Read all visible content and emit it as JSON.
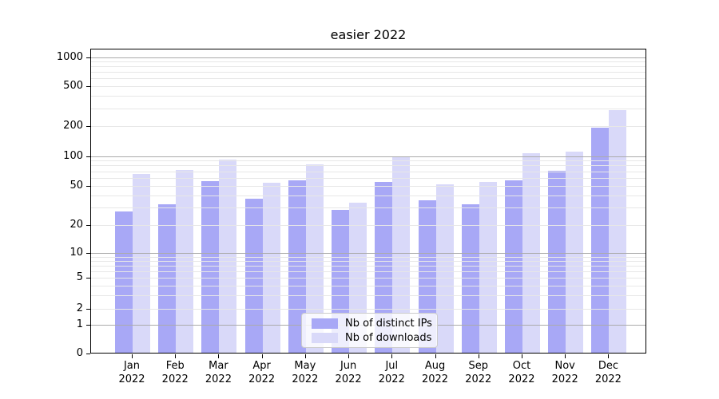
{
  "chart_data": {
    "type": "bar",
    "title": "easier 2022",
    "yscale": "symlog",
    "yticks": [
      0,
      1,
      2,
      5,
      10,
      20,
      50,
      100,
      200,
      500,
      1000
    ],
    "ylim": [
      0,
      1200
    ],
    "grid": "both",
    "legend_position": "lower center",
    "categories": [
      "Jan",
      "Feb",
      "Mar",
      "Apr",
      "May",
      "Jun",
      "Jul",
      "Aug",
      "Sep",
      "Oct",
      "Nov",
      "Dec"
    ],
    "year": "2022",
    "series": [
      {
        "name": "Nb of distinct IPs",
        "color": "#a8a8f6",
        "values": [
          27,
          32,
          55,
          36,
          56,
          28,
          54,
          35,
          32,
          56,
          70,
          190
        ]
      },
      {
        "name": "Nb of downloads",
        "color": "#d9d9f9",
        "values": [
          64,
          71,
          91,
          53,
          80,
          33,
          97,
          51,
          54,
          105,
          108,
          282
        ]
      }
    ]
  },
  "colors": {
    "grid_major": "#ababab",
    "grid_minor": "#e7e7e7",
    "spine": "#000000",
    "text": "#000000"
  }
}
